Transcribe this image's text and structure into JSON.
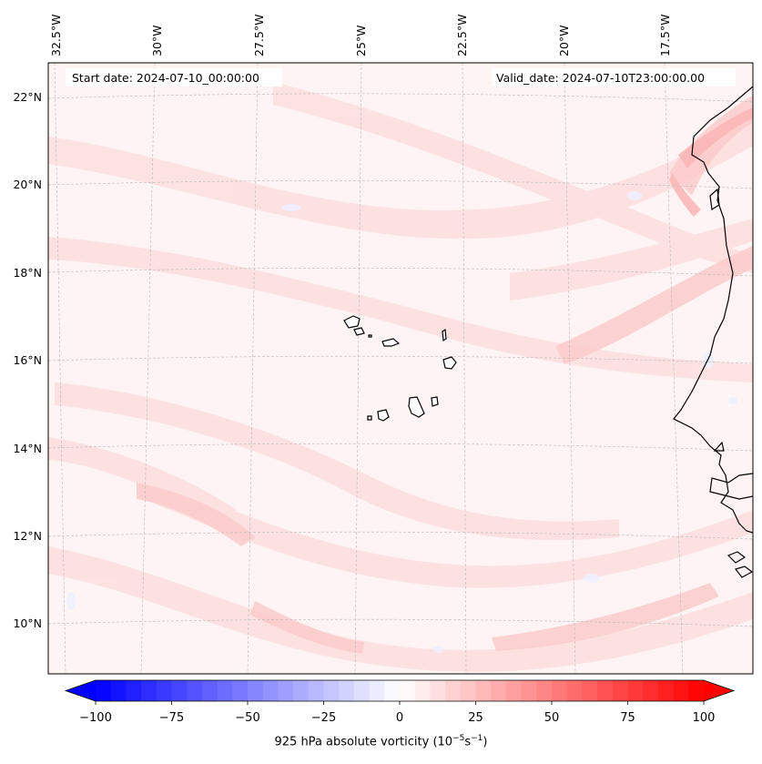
{
  "header": {
    "start_date": "Start date: 2024-07-10_00:00:00",
    "valid_date": "Valid_date: 2024-07-10T23:00:00.00"
  },
  "map": {
    "lon_labels": [
      "32.5°W",
      "30°W",
      "27.5°W",
      "25°W",
      "22.5°W",
      "20°W",
      "17.5°W"
    ],
    "lat_labels": [
      "22°N",
      "20°N",
      "18°N",
      "16°N",
      "14°N",
      "12°N",
      "10°N"
    ],
    "gridlines": "dashed-gray",
    "coastline_color": "#000000"
  },
  "colorbar": {
    "ticks": [
      "−100",
      "−75",
      "−50",
      "−25",
      "0",
      "25",
      "50",
      "75",
      "100"
    ],
    "range": [
      -100,
      100
    ],
    "cmap": "bwr",
    "extend": "both",
    "label_prefix": "925 hPa absolute vorticity (10",
    "label_exp1": "−5",
    "label_mid": "s",
    "label_exp2": "−1",
    "label_suffix": ")"
  },
  "colors": {
    "negative_end": "#0000ff",
    "zero": "#ffffff",
    "positive_end": "#ff0000"
  }
}
